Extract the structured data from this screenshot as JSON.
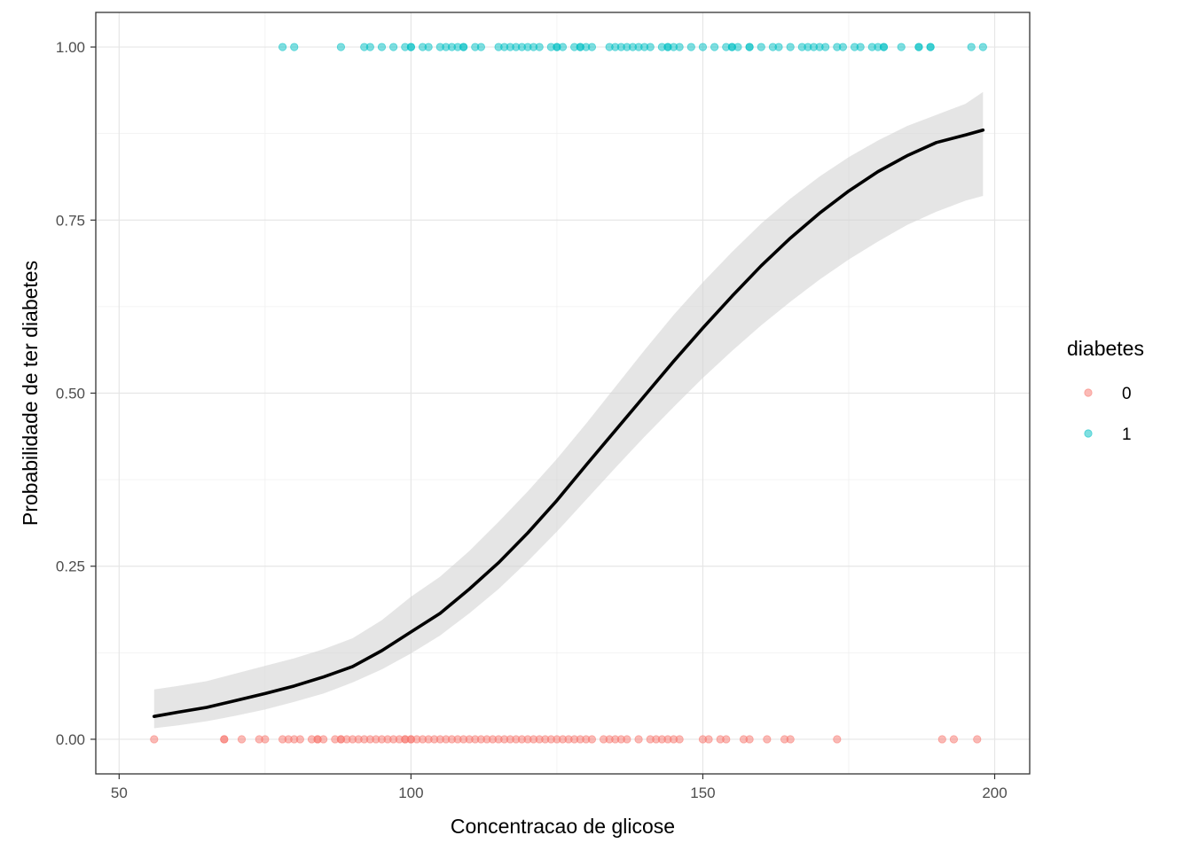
{
  "chart_data": {
    "type": "scatter",
    "xlabel": "Concentracao de glicose",
    "ylabel": "Probabilidade de ter diabetes",
    "xlim": [
      46,
      206
    ],
    "ylim": [
      -0.05,
      1.05
    ],
    "x_ticks": [
      50,
      100,
      150,
      200
    ],
    "x_tick_labels": [
      "50",
      "100",
      "150",
      "200"
    ],
    "y_ticks": [
      0,
      0.25,
      0.5,
      0.75,
      1
    ],
    "y_tick_labels": [
      "0.00",
      "0.25",
      "0.50",
      "0.75",
      "1.00"
    ],
    "grid": true,
    "legend": {
      "title": "diabetes",
      "position": "right",
      "entries": [
        {
          "label": "0",
          "color": "#F8766D"
        },
        {
          "label": "1",
          "color": "#00BFC4"
        }
      ]
    },
    "series": [
      {
        "name": "0",
        "y": 0,
        "color": "#F8766D",
        "x": [
          56,
          68,
          68,
          71,
          74,
          75,
          78,
          79,
          80,
          81,
          83,
          84,
          84,
          85,
          87,
          88,
          88,
          89,
          90,
          91,
          92,
          93,
          94,
          95,
          96,
          97,
          98,
          99,
          99,
          100,
          100,
          101,
          102,
          103,
          104,
          105,
          106,
          107,
          108,
          109,
          110,
          111,
          112,
          113,
          114,
          115,
          116,
          117,
          118,
          119,
          120,
          121,
          122,
          123,
          124,
          125,
          126,
          127,
          128,
          129,
          130,
          131,
          133,
          134,
          135,
          136,
          137,
          139,
          141,
          142,
          143,
          144,
          145,
          146,
          150,
          151,
          153,
          154,
          157,
          158,
          161,
          164,
          165,
          173,
          191,
          193,
          197
        ]
      },
      {
        "name": "1",
        "y": 1,
        "color": "#00BFC4",
        "x": [
          78,
          80,
          88,
          92,
          93,
          95,
          97,
          99,
          100,
          100,
          102,
          103,
          105,
          106,
          107,
          108,
          109,
          109,
          111,
          112,
          115,
          116,
          117,
          118,
          119,
          120,
          121,
          122,
          124,
          125,
          125,
          126,
          128,
          129,
          129,
          130,
          131,
          134,
          135,
          136,
          137,
          138,
          139,
          140,
          141,
          143,
          144,
          144,
          145,
          146,
          148,
          150,
          152,
          154,
          155,
          155,
          156,
          158,
          158,
          160,
          162,
          163,
          165,
          167,
          168,
          169,
          170,
          171,
          173,
          174,
          176,
          177,
          179,
          180,
          181,
          181,
          184,
          187,
          187,
          189,
          189,
          196,
          198
        ]
      },
      {
        "name": "",
        "type": "line",
        "color": "#000000",
        "x": [
          56,
          60,
          65,
          70,
          75,
          80,
          85,
          90,
          95,
          100,
          105,
          110,
          115,
          120,
          125,
          130,
          135,
          140,
          145,
          150,
          155,
          160,
          165,
          170,
          175,
          180,
          185,
          190,
          195,
          198
        ],
        "y": [
          0.033,
          0.039,
          0.046,
          0.056,
          0.066,
          0.077,
          0.09,
          0.105,
          0.128,
          0.155,
          0.182,
          0.217,
          0.255,
          0.298,
          0.345,
          0.396,
          0.446,
          0.496,
          0.546,
          0.594,
          0.64,
          0.684,
          0.724,
          0.76,
          0.792,
          0.82,
          0.843,
          0.862,
          0.873,
          0.88
        ]
      },
      {
        "name": "",
        "type": "band",
        "color": "#d3d3d3",
        "x": [
          56,
          60,
          65,
          70,
          75,
          80,
          85,
          90,
          95,
          100,
          105,
          110,
          115,
          120,
          125,
          130,
          135,
          140,
          145,
          150,
          155,
          160,
          165,
          170,
          175,
          180,
          185,
          190,
          195,
          198
        ],
        "lower": [
          0.016,
          0.02,
          0.026,
          0.034,
          0.043,
          0.054,
          0.066,
          0.082,
          0.101,
          0.124,
          0.15,
          0.182,
          0.217,
          0.257,
          0.3,
          0.346,
          0.392,
          0.437,
          0.48,
          0.522,
          0.561,
          0.598,
          0.632,
          0.664,
          0.693,
          0.719,
          0.743,
          0.762,
          0.778,
          0.785
        ],
        "upper": [
          0.072,
          0.077,
          0.084,
          0.095,
          0.106,
          0.117,
          0.13,
          0.146,
          0.172,
          0.206,
          0.235,
          0.272,
          0.314,
          0.358,
          0.405,
          0.456,
          0.509,
          0.562,
          0.613,
          0.66,
          0.704,
          0.745,
          0.781,
          0.813,
          0.841,
          0.865,
          0.886,
          0.902,
          0.918,
          0.935
        ]
      }
    ]
  }
}
